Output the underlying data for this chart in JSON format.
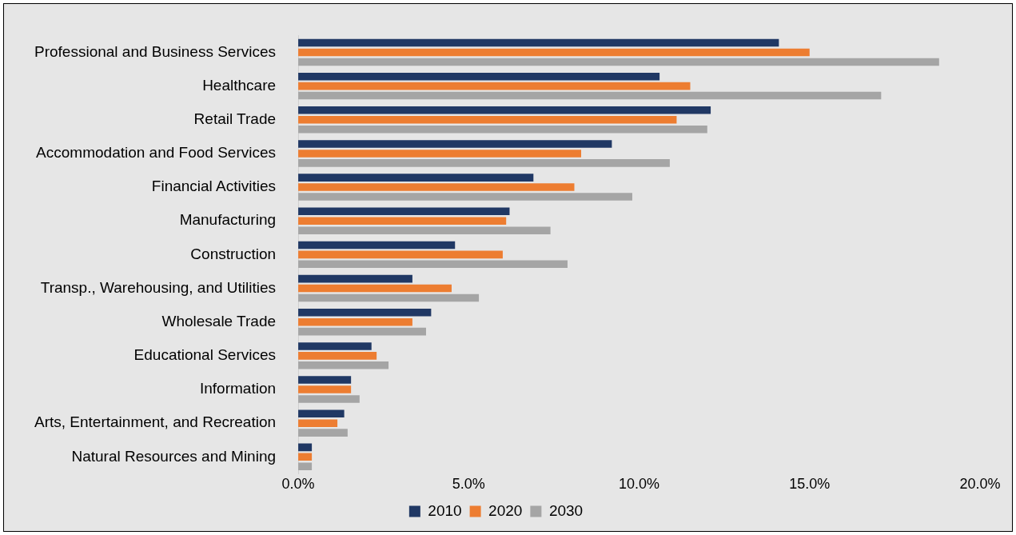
{
  "chart_data": {
    "type": "bar",
    "orientation": "horizontal",
    "categories": [
      "Professional and Business Services",
      "Healthcare",
      "Retail Trade",
      "Accommodation and Food Services",
      "Financial Activities",
      "Manufacturing",
      "Construction",
      "Transp., Warehousing, and Utilities",
      "Wholesale Trade",
      "Educational Services",
      "Information",
      "Arts, Entertainment, and Recreation",
      "Natural Resources and Mining"
    ],
    "series": [
      {
        "name": "2010",
        "color": "#203864",
        "values": [
          14.1,
          10.6,
          12.1,
          9.2,
          6.9,
          6.2,
          4.6,
          3.35,
          3.9,
          2.15,
          1.55,
          1.35,
          0.4
        ]
      },
      {
        "name": "2020",
        "color": "#ed7d31",
        "values": [
          15.0,
          11.5,
          11.1,
          8.3,
          8.1,
          6.1,
          6.0,
          4.5,
          3.35,
          2.3,
          1.55,
          1.15,
          0.4
        ]
      },
      {
        "name": "2030",
        "color": "#a5a5a5",
        "values": [
          18.8,
          17.1,
          12.0,
          10.9,
          9.8,
          7.4,
          7.9,
          5.3,
          3.75,
          2.65,
          1.8,
          1.45,
          0.4
        ]
      }
    ],
    "xlim": [
      0,
      20
    ],
    "xticks": [
      {
        "value": 0,
        "label": "0.0%"
      },
      {
        "value": 5,
        "label": "5.0%"
      },
      {
        "value": 10,
        "label": "10.0%"
      },
      {
        "value": 15,
        "label": "15.0%"
      },
      {
        "value": 20,
        "label": "20.0%"
      }
    ],
    "grid": false,
    "legend": "bottom"
  }
}
